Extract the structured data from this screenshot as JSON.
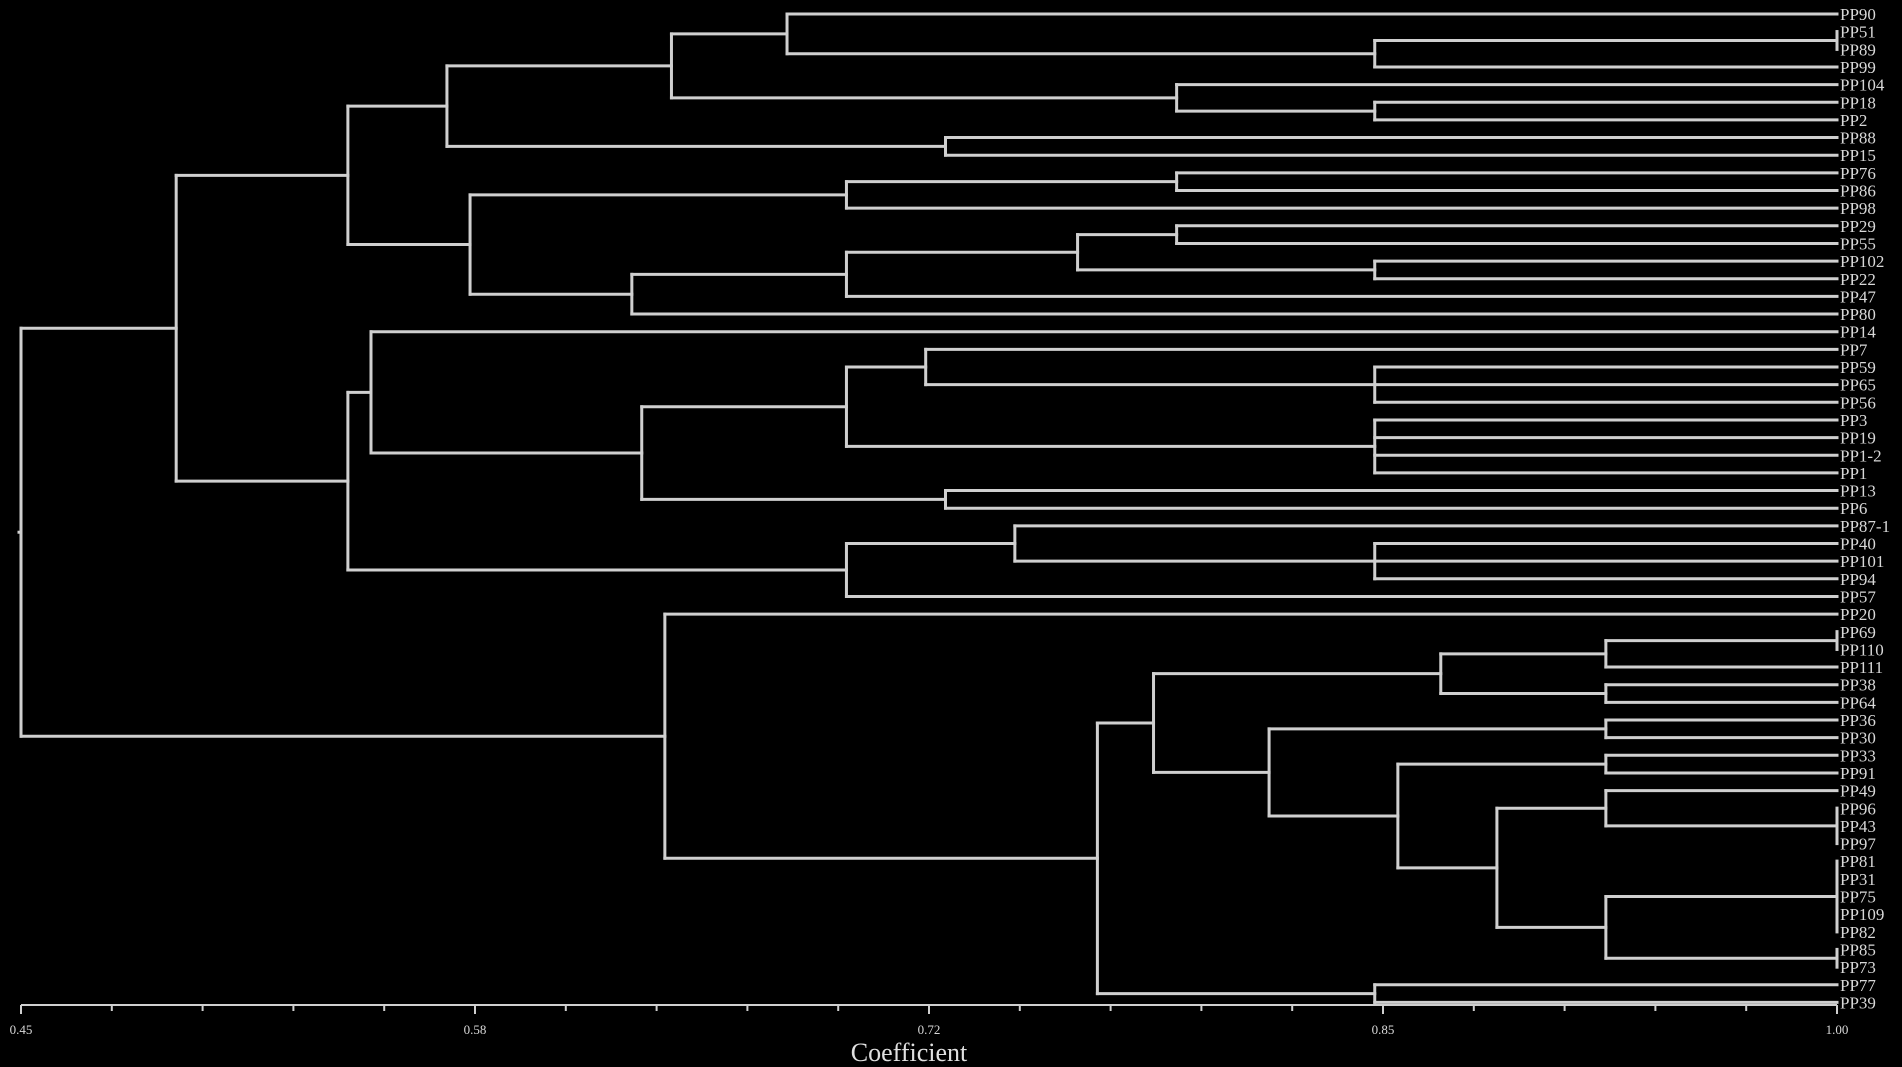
{
  "title": "",
  "axis": {
    "label": "Coefficient",
    "min": 0.45,
    "max": 1.0,
    "major_ticks": [
      "0.45",
      "0.58",
      "0.72",
      "0.85",
      "1.00"
    ],
    "minor_tick_count": 20
  },
  "leaves": [
    "PP90",
    "PP51",
    "PP89",
    "PP99",
    "PP104",
    "PP18",
    "PP2",
    "PP88",
    "PP15",
    "PP76",
    "PP86",
    "PP98",
    "PP29",
    "PP55",
    "PP102",
    "PP22",
    "PP47",
    "PP80",
    "PP14",
    "PP7",
    "PP59",
    "PP65",
    "PP56",
    "PP3",
    "PP19",
    "PP1-2",
    "PP1",
    "PP13",
    "PP6",
    "PP87-1",
    "PP40",
    "PP101",
    "PP94",
    "PP57",
    "PP20",
    "PP69",
    "PP110",
    "PP111",
    "PP38",
    "PP64",
    "PP36",
    "PP30",
    "PP33",
    "PP91",
    "PP49",
    "PP96",
    "PP43",
    "PP97",
    "PP81",
    "PP31",
    "PP75",
    "PP109",
    "PP82",
    "PP85",
    "PP73",
    "PP77",
    "PP39"
  ],
  "tree": {
    "h": 0.45,
    "c": [
      {
        "h": 0.497,
        "c": [
          {
            "h": 0.549,
            "c": [
              {
                "h": 0.579,
                "c": [
                  {
                    "h": 0.647,
                    "c": [
                      {
                        "h": 0.682,
                        "c": [
                          {
                            "l": "PP90"
                          },
                          {
                            "h": 0.86,
                            "c": [
                              {
                                "h": 1.0,
                                "c": [
                                  {
                                    "l": "PP51"
                                  },
                                  {
                                    "l": "PP89"
                                  }
                                ]
                              },
                              {
                                "l": "PP99"
                              }
                            ]
                          }
                        ]
                      },
                      {
                        "h": 0.8,
                        "c": [
                          {
                            "l": "PP104"
                          },
                          {
                            "h": 0.86,
                            "c": [
                              {
                                "l": "PP18"
                              },
                              {
                                "l": "PP2"
                              }
                            ]
                          }
                        ]
                      }
                    ]
                  },
                  {
                    "h": 0.73,
                    "c": [
                      {
                        "l": "PP88"
                      },
                      {
                        "l": "PP15"
                      }
                    ]
                  }
                ]
              },
              {
                "h": 0.586,
                "c": [
                  {
                    "h": 0.7,
                    "c": [
                      {
                        "h": 0.8,
                        "c": [
                          {
                            "l": "PP76"
                          },
                          {
                            "l": "PP86"
                          }
                        ]
                      },
                      {
                        "l": "PP98"
                      }
                    ]
                  },
                  {
                    "h": 0.635,
                    "c": [
                      {
                        "h": 0.7,
                        "c": [
                          {
                            "h": 0.77,
                            "c": [
                              {
                                "h": 0.8,
                                "c": [
                                  {
                                    "l": "PP29"
                                  },
                                  {
                                    "l": "PP55"
                                  }
                                ]
                              },
                              {
                                "h": 0.86,
                                "c": [
                                  {
                                    "l": "PP102"
                                  },
                                  {
                                    "l": "PP22"
                                  }
                                ]
                              }
                            ]
                          },
                          {
                            "l": "PP47"
                          }
                        ]
                      },
                      {
                        "l": "PP80"
                      }
                    ]
                  }
                ]
              }
            ]
          },
          {
            "h": 0.549,
            "c": [
              {
                "h": 0.556,
                "c": [
                  {
                    "l": "PP14"
                  },
                  {
                    "h": 0.638,
                    "c": [
                      {
                        "h": 0.7,
                        "c": [
                          {
                            "h": 0.724,
                            "c": [
                              {
                                "l": "PP7"
                              },
                              {
                                "h": 0.86,
                                "c": [
                                  {
                                    "l": "PP59"
                                  },
                                  {
                                    "l": "PP65"
                                  },
                                  {
                                    "l": "PP56"
                                  }
                                ]
                              }
                            ]
                          },
                          {
                            "h": 0.86,
                            "c": [
                              {
                                "l": "PP3"
                              },
                              {
                                "l": "PP19"
                              },
                              {
                                "l": "PP1-2"
                              },
                              {
                                "l": "PP1"
                              }
                            ]
                          }
                        ]
                      },
                      {
                        "h": 0.73,
                        "c": [
                          {
                            "l": "PP13"
                          },
                          {
                            "l": "PP6"
                          }
                        ]
                      }
                    ]
                  }
                ]
              },
              {
                "h": 0.7,
                "c": [
                  {
                    "h": 0.751,
                    "c": [
                      {
                        "l": "PP87-1"
                      },
                      {
                        "h": 0.86,
                        "c": [
                          {
                            "l": "PP40"
                          },
                          {
                            "l": "PP101"
                          },
                          {
                            "l": "PP94"
                          }
                        ]
                      }
                    ]
                  },
                  {
                    "l": "PP57"
                  }
                ]
              }
            ]
          }
        ]
      },
      {
        "h": 0.645,
        "c": [
          {
            "l": "PP20"
          },
          {
            "h": 0.776,
            "c": [
              {
                "h": 0.793,
                "c": [
                  {
                    "h": 0.88,
                    "c": [
                      {
                        "h": 0.93,
                        "c": [
                          {
                            "h": 1.0,
                            "c": [
                              {
                                "l": "PP69"
                              },
                              {
                                "l": "PP110"
                              }
                            ]
                          },
                          {
                            "l": "PP111"
                          }
                        ]
                      },
                      {
                        "h": 0.93,
                        "c": [
                          {
                            "l": "PP38"
                          },
                          {
                            "l": "PP64"
                          }
                        ]
                      }
                    ]
                  },
                  {
                    "h": 0.828,
                    "c": [
                      {
                        "h": 0.93,
                        "c": [
                          {
                            "l": "PP36"
                          },
                          {
                            "l": "PP30"
                          }
                        ]
                      },
                      {
                        "h": 0.867,
                        "c": [
                          {
                            "h": 0.93,
                            "c": [
                              {
                                "l": "PP33"
                              },
                              {
                                "l": "PP91"
                              }
                            ]
                          },
                          {
                            "h": 0.897,
                            "c": [
                              {
                                "h": 0.93,
                                "c": [
                                  {
                                    "l": "PP49"
                                  },
                                  {
                                    "h": 1.0,
                                    "c": [
                                      {
                                        "l": "PP96"
                                      },
                                      {
                                        "l": "PP43"
                                      },
                                      {
                                        "l": "PP97"
                                      }
                                    ]
                                  }
                                ]
                              },
                              {
                                "h": 0.93,
                                "c": [
                                  {
                                    "h": 1.0,
                                    "c": [
                                      {
                                        "l": "PP81"
                                      },
                                      {
                                        "l": "PP31"
                                      },
                                      {
                                        "l": "PP75"
                                      },
                                      {
                                        "l": "PP109"
                                      },
                                      {
                                        "l": "PP82"
                                      }
                                    ]
                                  },
                                  {
                                    "h": 1.0,
                                    "c": [
                                      {
                                        "l": "PP85"
                                      },
                                      {
                                        "l": "PP73"
                                      }
                                    ]
                                  }
                                ]
                              }
                            ]
                          }
                        ]
                      }
                    ]
                  }
                ]
              },
              {
                "h": 0.86,
                "c": [
                  {
                    "l": "PP77"
                  },
                  {
                    "l": "PP39"
                  }
                ]
              }
            ]
          }
        ]
      }
    ]
  }
}
